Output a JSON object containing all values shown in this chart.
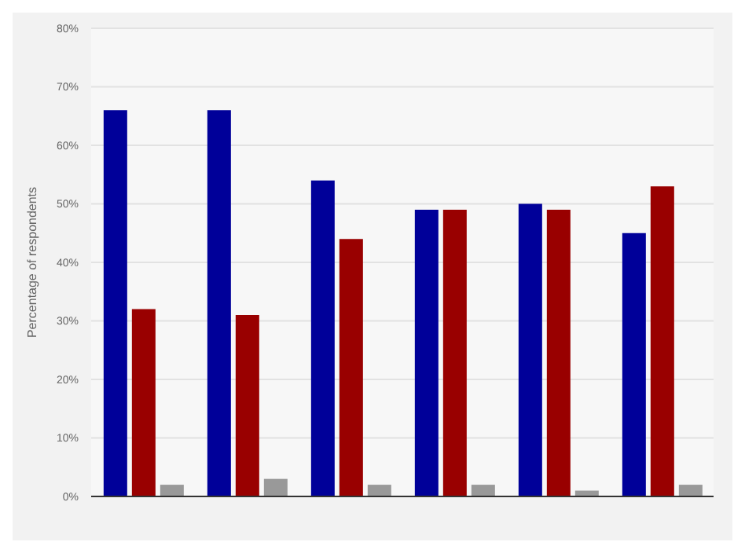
{
  "chart_data": {
    "type": "bar",
    "ylabel": "Percentage of respondents",
    "categories": [
      null,
      null,
      null,
      null,
      null,
      null
    ],
    "series": [
      {
        "color": "#000099",
        "values": [
          66,
          66,
          54,
          49,
          50,
          45
        ]
      },
      {
        "color": "#990000",
        "values": [
          32,
          31,
          44,
          49,
          49,
          53
        ]
      },
      {
        "color": "#999999",
        "values": [
          2,
          3,
          2,
          2,
          1,
          2
        ]
      }
    ],
    "ylim": [
      0,
      80
    ],
    "yticks": [
      {
        "value": 0,
        "label": "0%"
      },
      {
        "value": 10,
        "label": "10%"
      },
      {
        "value": 20,
        "label": "20%"
      },
      {
        "value": 30,
        "label": "30%"
      },
      {
        "value": 40,
        "label": "40%"
      },
      {
        "value": 50,
        "label": "50%"
      },
      {
        "value": 60,
        "label": "60%"
      },
      {
        "value": 70,
        "label": "70%"
      },
      {
        "value": 80,
        "label": "80%"
      }
    ],
    "grid": "y",
    "legend": false
  }
}
